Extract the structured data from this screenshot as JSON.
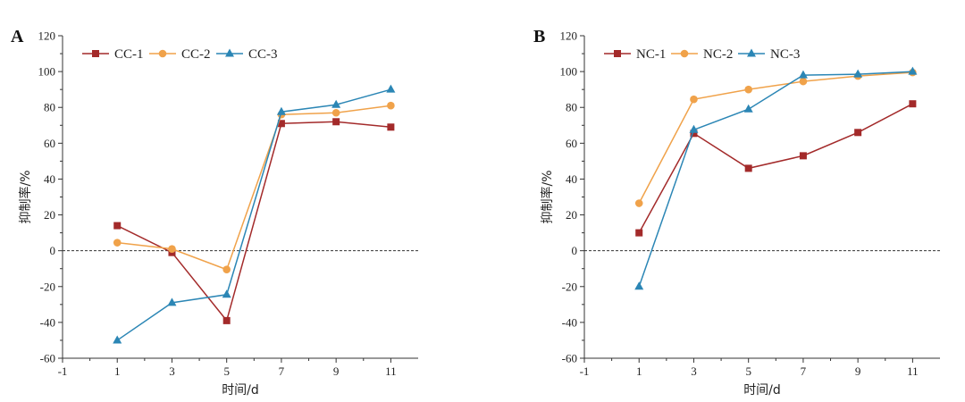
{
  "chart_data": [
    {
      "type": "line",
      "panel_label": "A",
      "xlabel": "时间/d",
      "ylabel": "抑制率/%",
      "xlim": [
        -1,
        12
      ],
      "ylim": [
        -60,
        120
      ],
      "x_ticks": [
        -1,
        1,
        3,
        5,
        7,
        9,
        11
      ],
      "y_ticks": [
        -60,
        -40,
        -20,
        0,
        20,
        40,
        60,
        80,
        100,
        120
      ],
      "reference_line": 0,
      "legend_position": "top-left",
      "x": [
        1,
        3,
        5,
        7,
        9,
        11
      ],
      "series": [
        {
          "name": "CC-1",
          "marker": "square",
          "color": "#a32a2a",
          "values": [
            14,
            -1,
            -39,
            71,
            72,
            69
          ]
        },
        {
          "name": "CC-2",
          "marker": "circle",
          "color": "#f0a24a",
          "values": [
            4.5,
            1,
            -10.5,
            76,
            77,
            81
          ]
        },
        {
          "name": "CC-3",
          "marker": "triangle",
          "color": "#2b86b5",
          "values": [
            -50,
            -29,
            -24.5,
            77.5,
            81.5,
            90
          ]
        }
      ]
    },
    {
      "type": "line",
      "panel_label": "B",
      "xlabel": "时间/d",
      "ylabel": "抑制率/%",
      "xlim": [
        -1,
        12
      ],
      "ylim": [
        -60,
        120
      ],
      "x_ticks": [
        -1,
        1,
        3,
        5,
        7,
        9,
        11
      ],
      "y_ticks": [
        -60,
        -40,
        -20,
        0,
        20,
        40,
        60,
        80,
        100,
        120
      ],
      "reference_line": 0,
      "legend_position": "top-left",
      "x": [
        1,
        3,
        5,
        7,
        9,
        11
      ],
      "series": [
        {
          "name": "NC-1",
          "marker": "square",
          "color": "#a32a2a",
          "values": [
            10,
            65.5,
            46,
            53,
            66,
            82
          ]
        },
        {
          "name": "NC-2",
          "marker": "circle",
          "color": "#f0a24a",
          "values": [
            26.5,
            84.5,
            90,
            94.5,
            97.5,
            99.5
          ]
        },
        {
          "name": "NC-3",
          "marker": "triangle",
          "color": "#2b86b5",
          "values": [
            -20,
            67.5,
            79,
            98,
            98.5,
            100
          ]
        }
      ]
    }
  ]
}
